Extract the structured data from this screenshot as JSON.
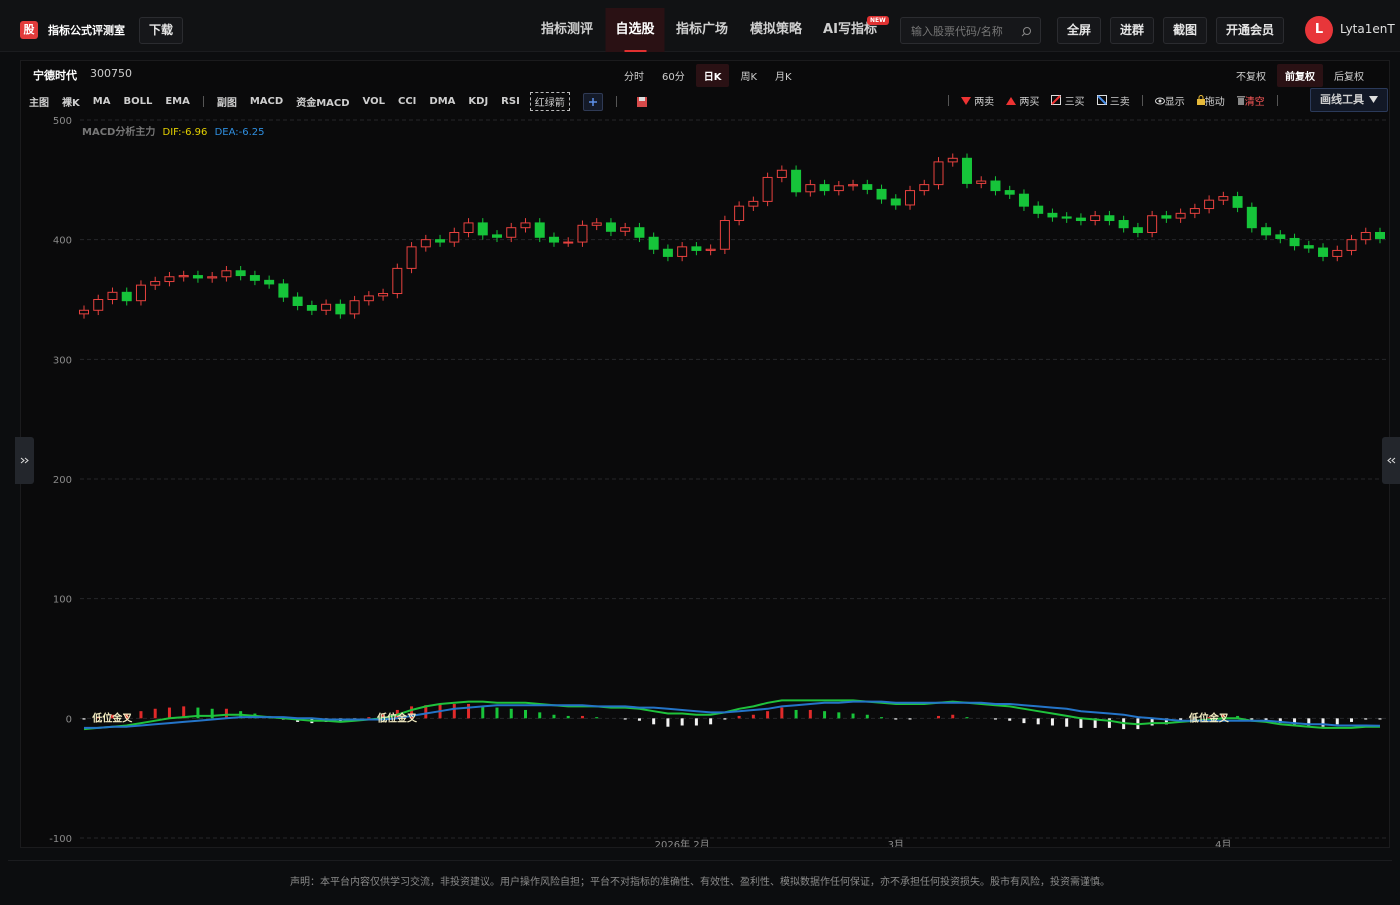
{
  "header": {
    "logo": "股",
    "app_name": "指标公式评测室",
    "download": "下载",
    "nav": [
      "指标测评",
      "自选股",
      "指标广场",
      "模拟策略",
      "AI写指标"
    ],
    "new_badge": "NEW",
    "search_placeholder": "输入股票代码/名称",
    "buttons": [
      "全屏",
      "进群",
      "截图",
      "开通会员"
    ],
    "avatar": "L",
    "username": "Lyta1enT"
  },
  "stock": {
    "name": "宁德时代",
    "code": "300750"
  },
  "periods": [
    "分时",
    "60分",
    "日K",
    "周K",
    "月K"
  ],
  "adjust": [
    "不复权",
    "前复权",
    "后复权"
  ],
  "main_tools": [
    "主图",
    "裸K",
    "MA",
    "BOLL",
    "EMA"
  ],
  "sub_tools": [
    "副图",
    "MACD",
    "资金MACD",
    "VOL",
    "CCI",
    "DMA",
    "KDJ",
    "RSI"
  ],
  "arrow_tool": "红绿箭",
  "signal_tools": [
    "两卖",
    "两买",
    "三买",
    "三卖"
  ],
  "view_tools": [
    "显示",
    "拖动",
    "清空"
  ],
  "draw_tool": "画线工具",
  "chart_data": {
    "type": "candlestick",
    "indicator_name": "MACD分析主力",
    "dif_label": "DIF:-6.96",
    "dea_label": "DEA:-6.25",
    "up_color": "#e8423f",
    "down_color": "#16c43a",
    "open": [
      338,
      341,
      350,
      356,
      349,
      362,
      365,
      369,
      370,
      368,
      369,
      374,
      370,
      366,
      363,
      352,
      345,
      341,
      346,
      338,
      349,
      353,
      355,
      376,
      394,
      400,
      398,
      406,
      414,
      404,
      402,
      410,
      414,
      402,
      398,
      398,
      412,
      414,
      407,
      410,
      402,
      392,
      386,
      394,
      391,
      392,
      416,
      428,
      432,
      452,
      458,
      440,
      446,
      441,
      445,
      446,
      442,
      434,
      429,
      441,
      446,
      465,
      468,
      447,
      449,
      441,
      438,
      428,
      422,
      419,
      418,
      416,
      420,
      416,
      410,
      406,
      420,
      418,
      422,
      426,
      433,
      436,
      427,
      410,
      404,
      401,
      395,
      393,
      386,
      391,
      400,
      406
    ],
    "high": [
      345,
      354,
      360,
      360,
      366,
      369,
      373,
      374,
      374,
      373,
      378,
      378,
      374,
      370,
      367,
      356,
      349,
      350,
      350,
      353,
      357,
      359,
      380,
      398,
      404,
      404,
      410,
      418,
      418,
      408,
      414,
      418,
      418,
      406,
      402,
      416,
      418,
      418,
      414,
      414,
      406,
      396,
      398,
      398,
      396,
      420,
      432,
      436,
      456,
      462,
      462,
      450,
      450,
      449,
      450,
      450,
      446,
      438,
      445,
      450,
      469,
      472,
      472,
      453,
      453,
      445,
      442,
      432,
      426,
      423,
      422,
      424,
      424,
      420,
      414,
      424,
      424,
      426,
      430,
      437,
      440,
      440,
      431,
      414,
      408,
      405,
      399,
      397,
      395,
      404,
      410,
      410
    ],
    "low": [
      334,
      337,
      346,
      345,
      345,
      358,
      361,
      365,
      364,
      364,
      365,
      366,
      362,
      359,
      348,
      341,
      337,
      337,
      334,
      334,
      345,
      349,
      351,
      372,
      390,
      394,
      394,
      402,
      400,
      398,
      398,
      406,
      398,
      394,
      394,
      394,
      408,
      403,
      403,
      398,
      388,
      382,
      382,
      387,
      387,
      388,
      412,
      424,
      428,
      448,
      436,
      436,
      437,
      437,
      441,
      438,
      430,
      425,
      425,
      437,
      442,
      461,
      443,
      443,
      437,
      434,
      424,
      418,
      415,
      414,
      412,
      412,
      412,
      406,
      402,
      402,
      414,
      414,
      418,
      422,
      429,
      423,
      406,
      400,
      397,
      391,
      389,
      382,
      382,
      387,
      396,
      397
    ],
    "close": [
      341,
      350,
      356,
      349,
      362,
      365,
      369,
      370,
      368,
      369,
      374,
      370,
      366,
      363,
      352,
      345,
      341,
      346,
      338,
      349,
      353,
      355,
      376,
      394,
      400,
      398,
      406,
      414,
      404,
      402,
      410,
      414,
      402,
      398,
      398,
      412,
      414,
      407,
      410,
      402,
      392,
      386,
      394,
      391,
      392,
      416,
      428,
      432,
      452,
      458,
      440,
      446,
      441,
      445,
      446,
      442,
      434,
      429,
      441,
      446,
      465,
      468,
      447,
      449,
      441,
      438,
      428,
      422,
      419,
      418,
      416,
      420,
      416,
      410,
      406,
      420,
      418,
      422,
      426,
      433,
      436,
      427,
      410,
      404,
      401,
      395,
      393,
      386,
      391,
      400,
      406,
      401
    ],
    "series": [
      {
        "name": "DIF",
        "color": "#1fc23c",
        "values": [
          -9,
          -8,
          -7,
          -6,
          -4,
          -2,
          0,
          1,
          2,
          2,
          3,
          3,
          2,
          1,
          0,
          -1,
          -2,
          -2,
          -3,
          -2,
          -1,
          0,
          3,
          7,
          10,
          12,
          13,
          14,
          14,
          13,
          13,
          13,
          12,
          11,
          10,
          10,
          10,
          9,
          9,
          8,
          6,
          4,
          4,
          3,
          3,
          5,
          8,
          10,
          13,
          15,
          15,
          15,
          15,
          15,
          15,
          14,
          13,
          12,
          12,
          12,
          13,
          14,
          13,
          12,
          11,
          10,
          8,
          6,
          4,
          2,
          0,
          -1,
          -2,
          -4,
          -5,
          -4,
          -4,
          -3,
          -2,
          -1,
          0,
          0,
          -2,
          -3,
          -5,
          -6,
          -7,
          -8,
          -8,
          -8,
          -7,
          -6.96
        ]
      },
      {
        "name": "DEA",
        "color": "#2474c8",
        "values": [
          -8,
          -8,
          -7,
          -7,
          -6,
          -5,
          -4,
          -3,
          -2,
          -1,
          0,
          1,
          1,
          1,
          1,
          0,
          0,
          -1,
          -1,
          -1,
          -1,
          -1,
          0,
          2,
          4,
          6,
          8,
          9,
          10,
          11,
          11,
          11,
          11,
          11,
          11,
          11,
          10,
          10,
          10,
          9,
          9,
          8,
          7,
          6,
          5,
          5,
          6,
          7,
          8,
          10,
          11,
          12,
          13,
          13,
          14,
          14,
          14,
          13,
          13,
          13,
          13,
          13,
          13,
          13,
          12,
          12,
          11,
          10,
          9,
          8,
          6,
          5,
          4,
          3,
          1,
          0,
          -1,
          -2,
          -2,
          -2,
          -2,
          -2,
          -2,
          -2,
          -3,
          -4,
          -5,
          -5,
          -6,
          -6,
          -6,
          -6.25
        ]
      }
    ],
    "histogram": {
      "values": [
        -1,
        1,
        3,
        4,
        6,
        8,
        9,
        10,
        9,
        8,
        8,
        6,
        4,
        2,
        -1,
        -3,
        -4,
        -3,
        -3,
        -1,
        1,
        3,
        7,
        10,
        11,
        12,
        12,
        12,
        10,
        9,
        8,
        7,
        5,
        3,
        2,
        2,
        1,
        0,
        -1,
        -2,
        -5,
        -7,
        -6,
        -6,
        -5,
        -1,
        2,
        3,
        6,
        9,
        7,
        7,
        6,
        5,
        4,
        3,
        1,
        -1,
        -1,
        0,
        2,
        3,
        1,
        0,
        -1,
        -2,
        -4,
        -5,
        -6,
        -7,
        -8,
        -8,
        -8,
        -9,
        -9,
        -6,
        -5,
        -3,
        -1,
        1,
        3,
        2,
        -1,
        -3,
        -4,
        -5,
        -6,
        -7,
        -5,
        -3,
        -1,
        -1
      ],
      "pos_color": "#e02a2a",
      "fall_color": "#18c43a",
      "neg_color": "#f2f2f2"
    },
    "annotations": [
      {
        "index": 1,
        "text": "低位金叉"
      },
      {
        "index": 21,
        "text": "低位金叉"
      },
      {
        "index": 78,
        "text": "低位金叉"
      }
    ],
    "annotation_color": "#f3ecc2",
    "xlim": [
      0,
      91
    ],
    "xticks": [
      {
        "value": 42,
        "label": "2026年 2月"
      },
      {
        "value": 57,
        "label": "3月"
      },
      {
        "value": 80,
        "label": "4月"
      }
    ],
    "ylim": [
      -100,
      500
    ],
    "yticks": [
      -100,
      0,
      100,
      200,
      300,
      400,
      500
    ],
    "grid": true
  },
  "footer": "声明：本平台内容仅供学习交流，非投资建议。用户操作风险自担；平台不对指标的准确性、有效性、盈利性、模拟数据作任何保证，亦不承担任何投资损失。股市有风险，投资需谨慎。"
}
